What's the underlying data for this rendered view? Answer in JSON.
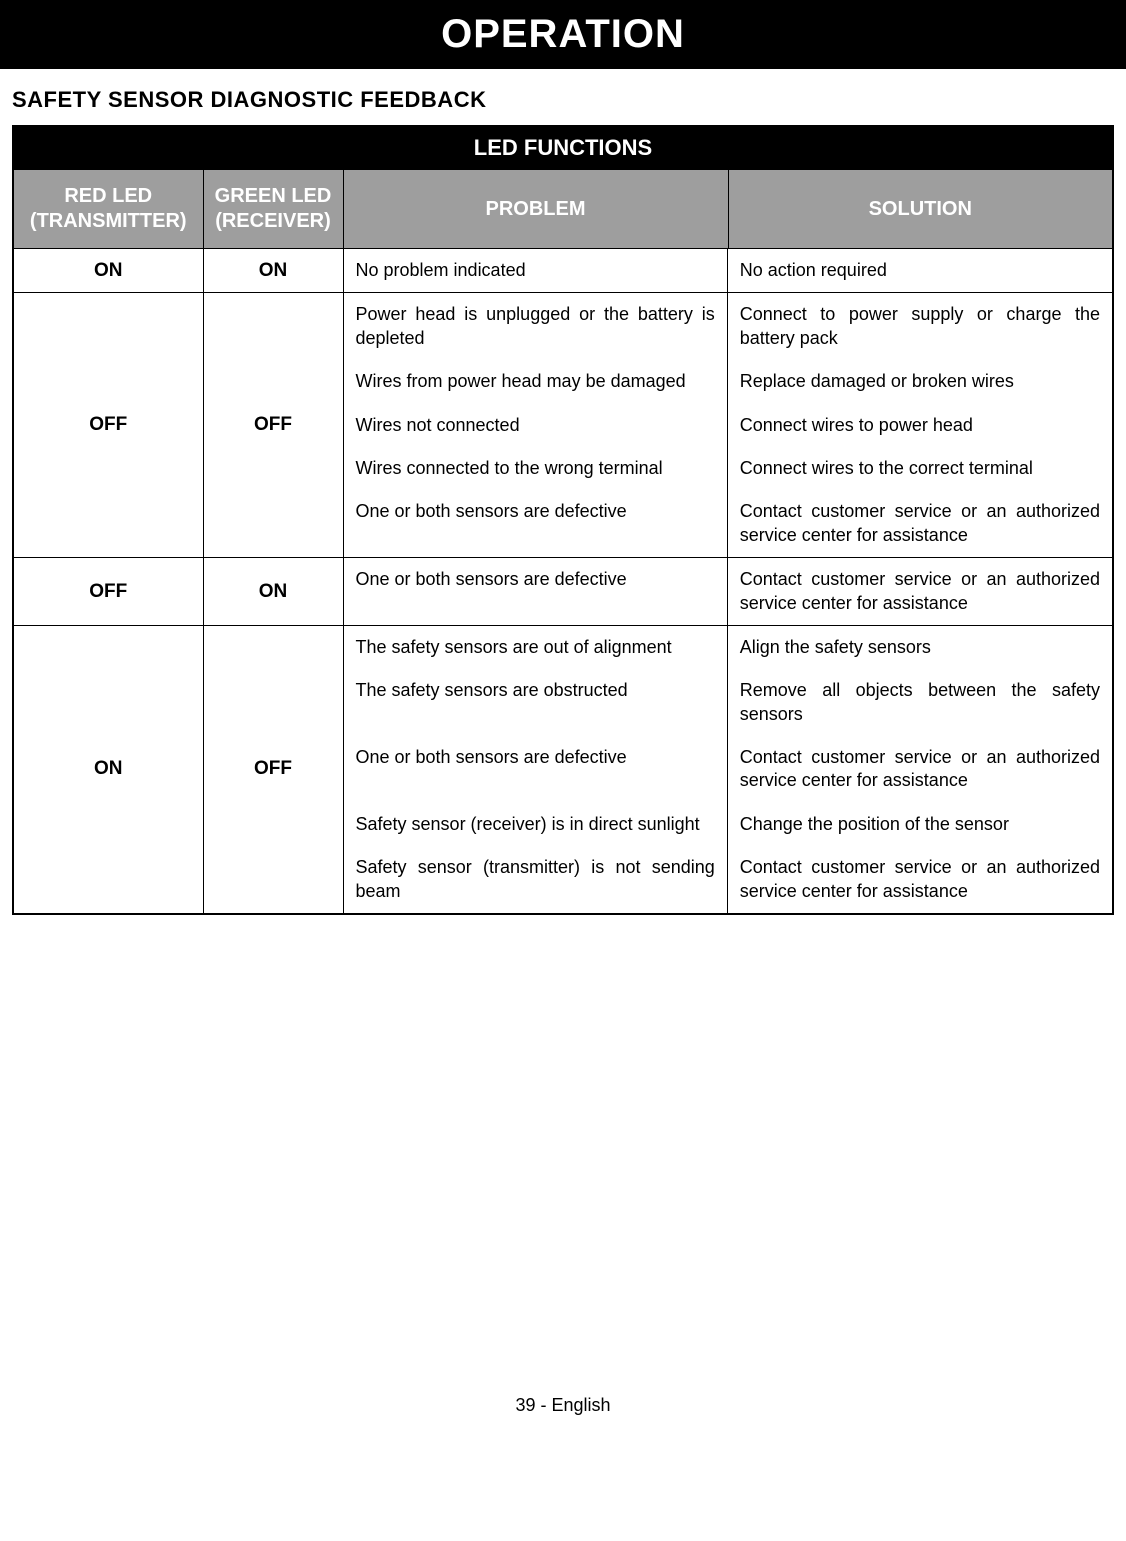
{
  "banner": "OPERATION",
  "section_heading": "SAFETY SENSOR DIAGNOSTIC FEEDBACK",
  "table": {
    "title": "LED FUNCTIONS",
    "columns": {
      "red": "RED LED (TRANSMITTER)",
      "green": "GREEN LED (RECEIVER)",
      "problem": "PROBLEM",
      "solution": "SOLUTION"
    },
    "rows": [
      {
        "red": "ON",
        "green": "ON",
        "items": [
          {
            "problem": "No problem indicated",
            "solution": "No action required"
          }
        ]
      },
      {
        "red": "OFF",
        "green": "OFF",
        "items": [
          {
            "problem": "Power head is unplugged or the battery is depleted",
            "solution": "Connect to power supply or charge the battery pack"
          },
          {
            "problem": "Wires from power head may be damaged",
            "solution": "Replace damaged or broken wires"
          },
          {
            "problem": "Wires not connected",
            "solution": "Connect wires to power head"
          },
          {
            "problem": "Wires connected to the wrong terminal",
            "solution": "Connect wires to the correct terminal"
          },
          {
            "problem": "One or both sensors are defective",
            "solution": "Contact customer service or an authorized service center for assistance"
          }
        ]
      },
      {
        "red": "OFF",
        "green": "ON",
        "items": [
          {
            "problem": "One or both sensors are defective",
            "solution": "Contact customer service or an authorized service center for assistance"
          }
        ]
      },
      {
        "red": "ON",
        "green": "OFF",
        "items": [
          {
            "problem": "The safety sensors are out of alignment",
            "solution": "Align the safety sensors"
          },
          {
            "problem": "The safety sensors are obstructed",
            "solution": "Remove all objects between the safety sensors"
          },
          {
            "problem": "One or both sensors are defective",
            "solution": "Contact customer service or an authorized service center for assistance"
          },
          {
            "problem": "Safety sensor (receiver) is in direct sunlight",
            "solution": "Change the position of the sensor"
          },
          {
            "problem": "Safety sensor (transmitter) is not sending beam",
            "solution": "Contact customer service or an authorized service center for assistance"
          }
        ]
      }
    ]
  },
  "footer": "39 - English",
  "style": {
    "banner_bg": "#000000",
    "banner_fg": "#ffffff",
    "header_bg": "#9e9e9e",
    "header_fg": "#ffffff",
    "cell_border": "#000000",
    "body_font_size_pt": 14,
    "banner_font_size_pt": 30,
    "heading_font_size_pt": 17
  }
}
